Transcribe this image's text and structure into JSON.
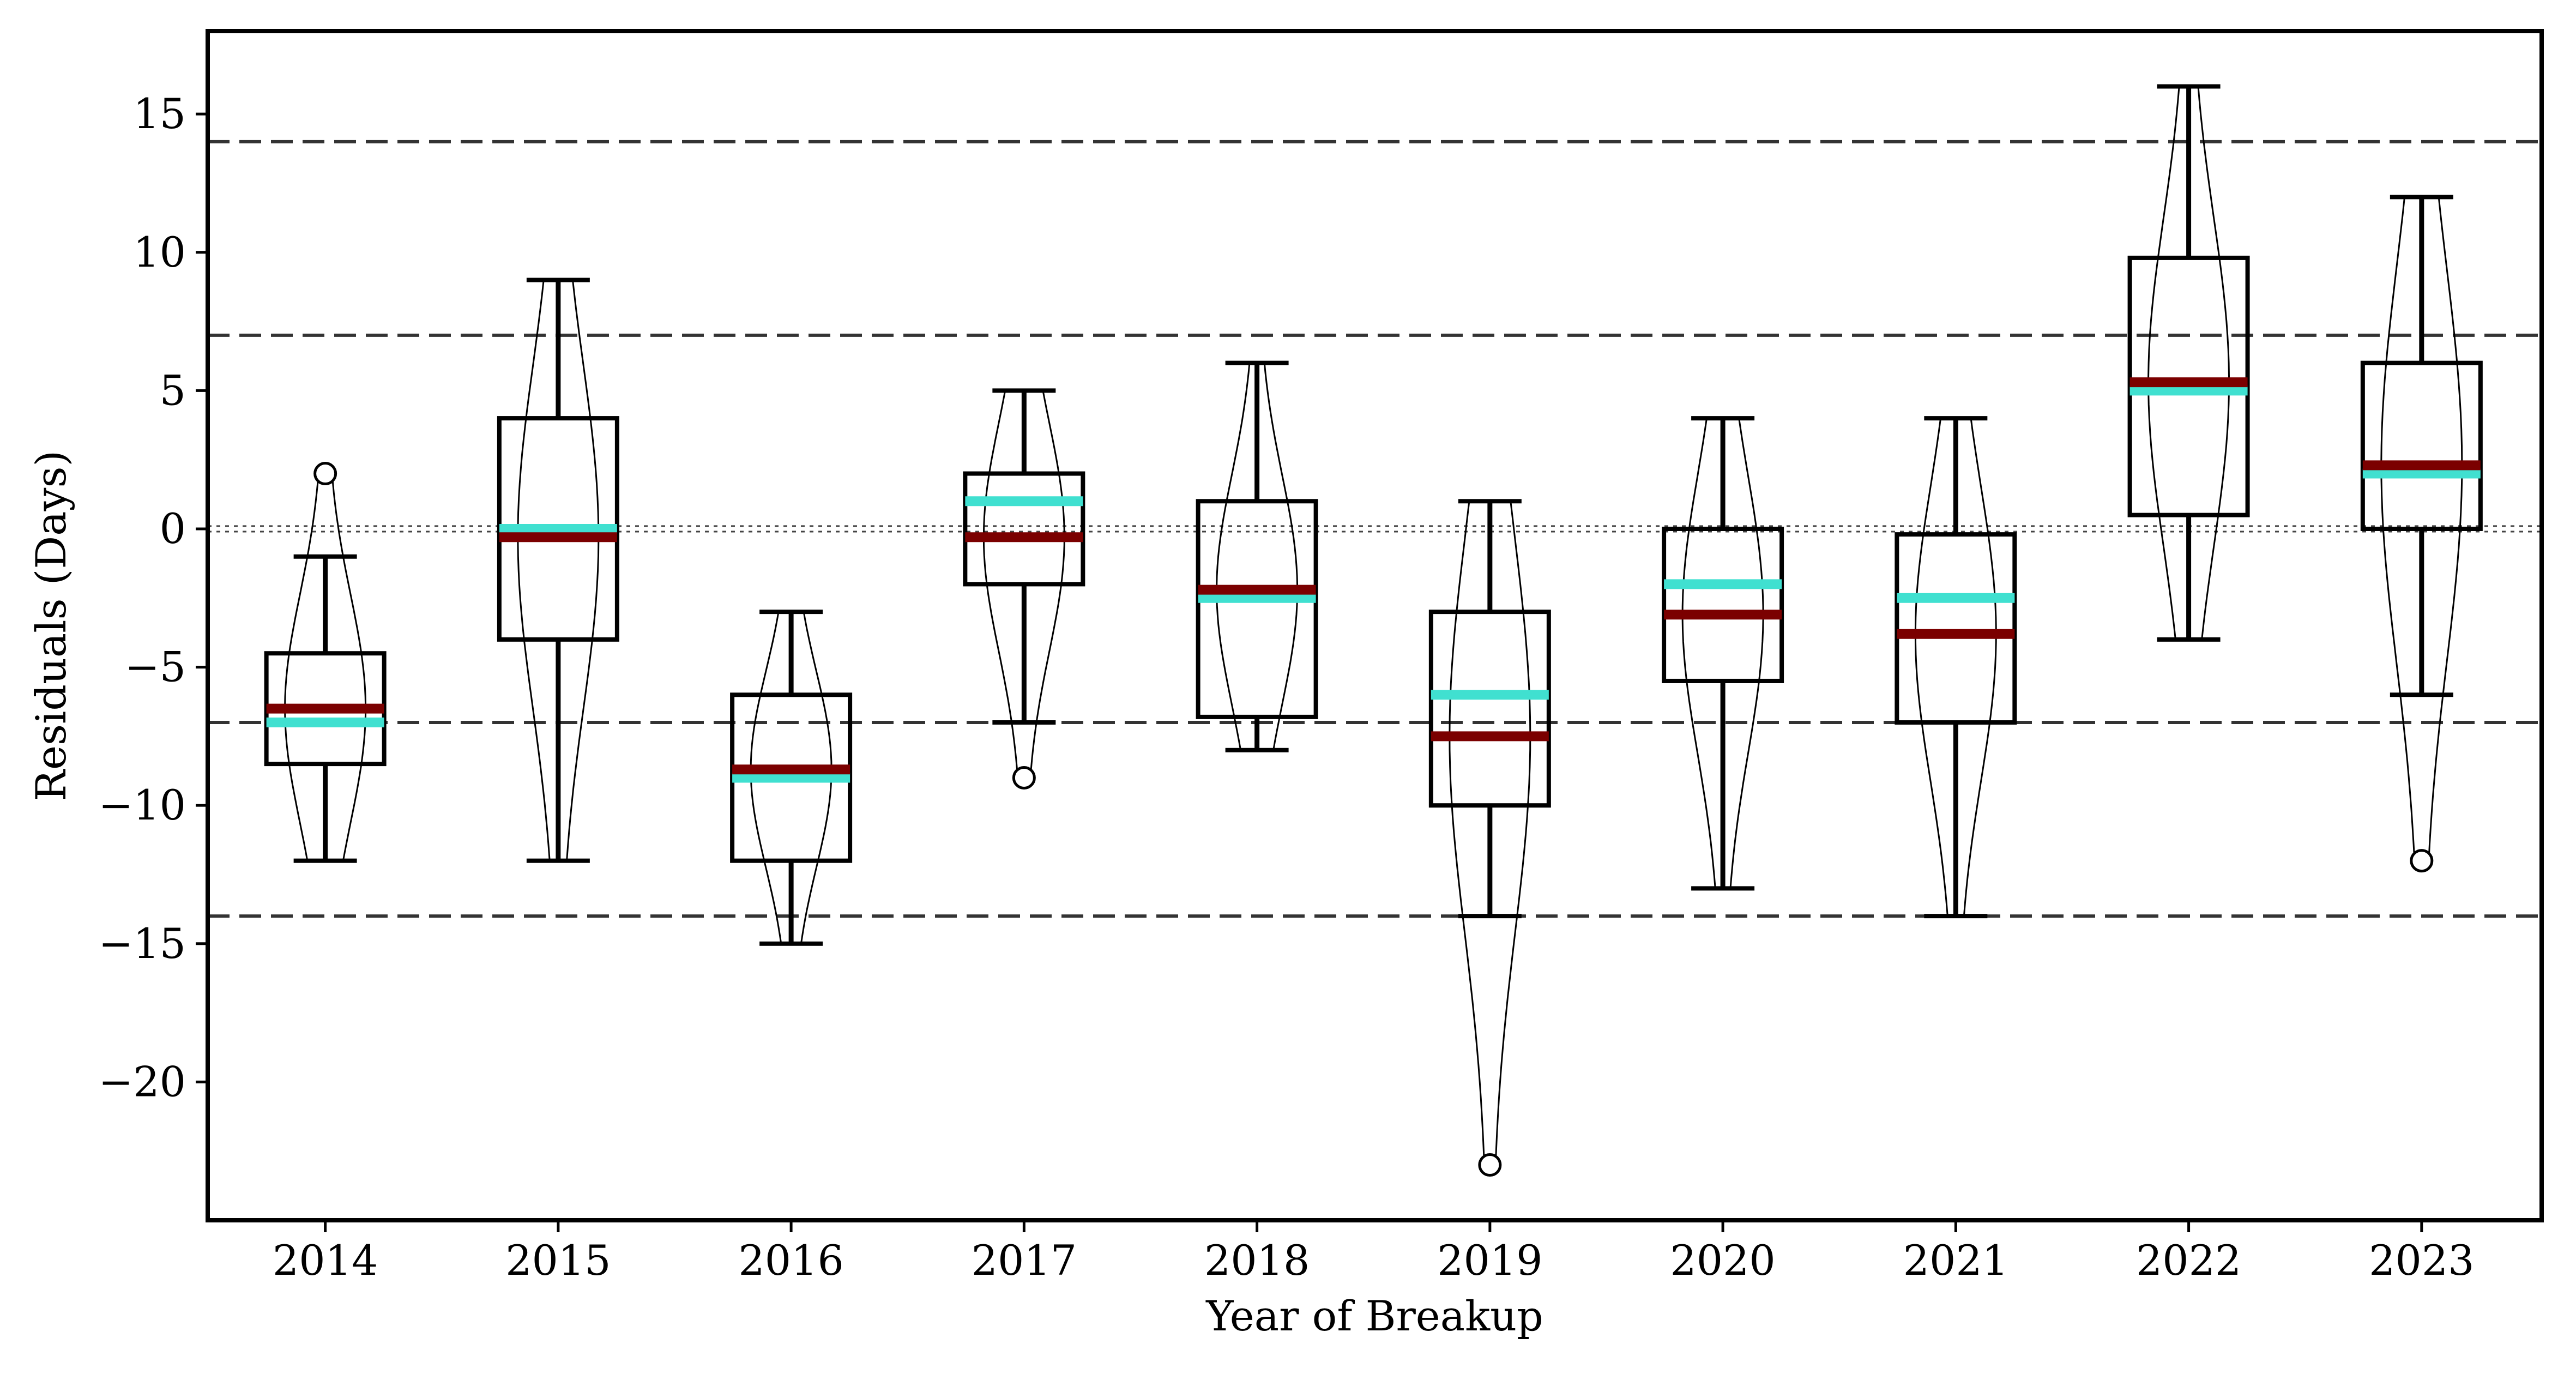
{
  "chart_data": {
    "type": "box",
    "xlabel": "Year of Breakup",
    "ylabel": "Residuals (Days)",
    "ylim": [
      -25,
      18
    ],
    "yticks": [
      15,
      10,
      5,
      0,
      -5,
      -10,
      -15,
      -20
    ],
    "ytick_labels": [
      "15",
      "10",
      "5",
      "0",
      "−5",
      "−10",
      "−15",
      "−20"
    ],
    "grid": false,
    "reference_lines": {
      "dashed": [
        14,
        7,
        -7,
        -14
      ],
      "dotted": [
        0.1,
        -0.1
      ]
    },
    "colors": {
      "median": "#7b0000",
      "mean": "#40e0d0",
      "box": "#000000"
    },
    "categories": [
      "2014",
      "2015",
      "2016",
      "2017",
      "2018",
      "2019",
      "2020",
      "2021",
      "2022",
      "2023"
    ],
    "boxes": [
      {
        "year": "2014",
        "whisker_low": -12,
        "q1": -8.5,
        "median": -6.5,
        "mean": -7.0,
        "q3": -4.5,
        "whisker_high": -1,
        "outliers": [
          2
        ]
      },
      {
        "year": "2015",
        "whisker_low": -12,
        "q1": -4,
        "median": -0.3,
        "mean": 0.0,
        "q3": 4,
        "whisker_high": 9,
        "outliers": []
      },
      {
        "year": "2016",
        "whisker_low": -15,
        "q1": -12,
        "median": -8.7,
        "mean": -9.0,
        "q3": -6,
        "whisker_high": -3,
        "outliers": []
      },
      {
        "year": "2017",
        "whisker_low": -7,
        "q1": -2,
        "median": -0.3,
        "mean": 1.0,
        "q3": 2,
        "whisker_high": 5,
        "outliers": [
          -9
        ]
      },
      {
        "year": "2018",
        "whisker_low": -8,
        "q1": -6.8,
        "median": -2.2,
        "mean": -2.5,
        "q3": 1,
        "whisker_high": 6,
        "outliers": []
      },
      {
        "year": "2019",
        "whisker_low": -14,
        "q1": -10,
        "median": -7.5,
        "mean": -6.0,
        "q3": -3,
        "whisker_high": 1,
        "outliers": [
          -23
        ]
      },
      {
        "year": "2020",
        "whisker_low": -13,
        "q1": -5.5,
        "median": -3.1,
        "mean": -2.0,
        "q3": 0,
        "whisker_high": 4,
        "outliers": []
      },
      {
        "year": "2021",
        "whisker_low": -14,
        "q1": -7,
        "median": -3.8,
        "mean": -2.5,
        "q3": -0.2,
        "whisker_high": 4,
        "outliers": []
      },
      {
        "year": "2022",
        "whisker_low": -4,
        "q1": 0.5,
        "median": 5.3,
        "mean": 5.0,
        "q3": 9.8,
        "whisker_high": 16,
        "outliers": []
      },
      {
        "year": "2023",
        "whisker_low": -6,
        "q1": 0,
        "median": 2.3,
        "mean": 2.0,
        "q3": 6,
        "whisker_high": 12,
        "outliers": [
          -12
        ]
      }
    ]
  }
}
